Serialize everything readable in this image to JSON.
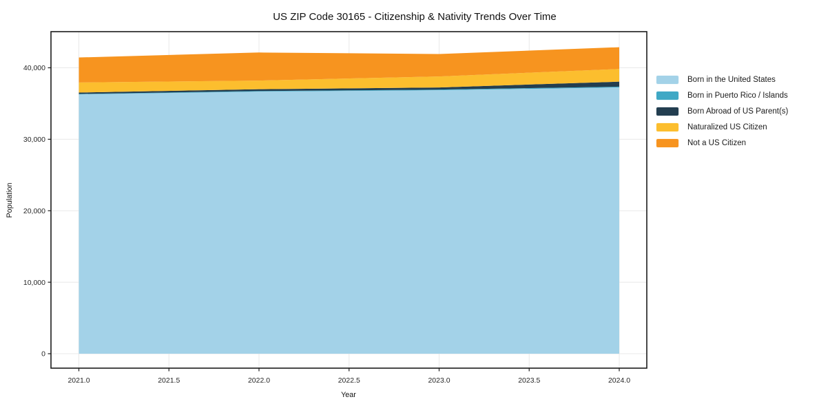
{
  "chart_data": {
    "type": "area",
    "stacked": true,
    "title": "US ZIP Code 30165 - Citizenship & Nativity Trends Over Time",
    "xlabel": "Year",
    "ylabel": "Population",
    "x": [
      2021,
      2022,
      2023,
      2024
    ],
    "series": [
      {
        "name": "Born in the United States",
        "color": "#a3d2e8",
        "values": [
          36280,
          36670,
          36860,
          37250
        ]
      },
      {
        "name": "Born in Puerto Rico / Islands",
        "color": "#3fa8c5",
        "values": [
          60,
          80,
          90,
          110
        ]
      },
      {
        "name": "Born Abroad of US Parent(s)",
        "color": "#233e50",
        "values": [
          200,
          250,
          300,
          700
        ]
      },
      {
        "name": "Naturalized US Citizen",
        "color": "#fcbe2e",
        "values": [
          1400,
          1210,
          1540,
          1770
        ]
      },
      {
        "name": "Not a US Citizen",
        "color": "#f7941f",
        "values": [
          3500,
          3930,
          3130,
          3050
        ]
      }
    ],
    "totals": [
      41440,
      42140,
      41920,
      42880
    ],
    "x_ticks": {
      "values": [
        2021,
        2021.5,
        2022,
        2022.5,
        2023,
        2023.5,
        2024
      ],
      "labels": [
        "2021.0",
        "2021.5",
        "2022.0",
        "2022.5",
        "2023.0",
        "2023.5",
        "2024.0"
      ]
    },
    "y_ticks": {
      "values": [
        0,
        10000,
        20000,
        30000,
        40000
      ],
      "labels": [
        "0",
        "10,000",
        "20,000",
        "30,000",
        "40,000"
      ]
    },
    "x_axis_range": [
      2021,
      2024
    ],
    "grid": true,
    "legend_position": "right"
  }
}
